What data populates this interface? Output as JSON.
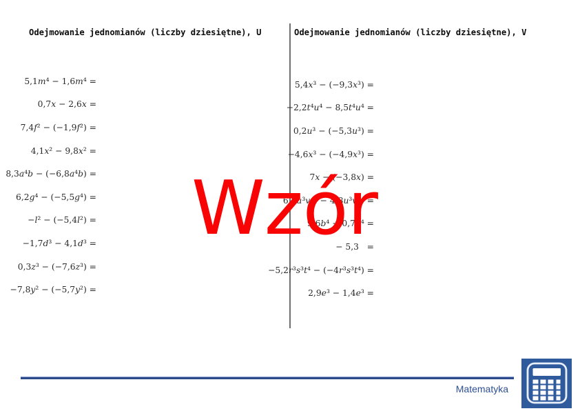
{
  "left_worksheet": {
    "title": "Odejmowanie jednomianów (liczby dziesiętne), U",
    "problems": [
      "5,1m⁴ − 1,6m⁴ =",
      "0,7x − 2,6x =",
      "7,4f² − (−1,9f²) =",
      "4,1x² − 9,8x² =",
      "8,3a⁴b − (−6,8a⁴b) =",
      "6,2g⁴ − (−5,5g⁴) =",
      "−l² − (−5,4l²) =",
      "−1,7d³ − 4,1d³ =",
      "0,3z³ − (−7,6z³) =",
      "−7,8y² − (−5,7y²) ="
    ]
  },
  "right_worksheet": {
    "title": "Odejmowanie jednomianów (liczby dziesiętne), V",
    "problems": [
      "5,4x³ − (−9,3x³) =",
      "−2,2t⁴u⁴ − 8,5t⁴u⁴ =",
      "0,2u³ − (−5,3u³) =",
      "−4,6x³ − (−4,9x³) =",
      "7x − (−3,8x) =",
      "6,6u³vw − 4,8u³vw =",
      "9,6b⁴ − 0,7b⁴ =",
      "− 5,3   =",
      "−5,2r³s³t⁴ − (−4r³s³t⁴) =",
      "2,9e³ − 1,4e³ ="
    ]
  },
  "watermark": {
    "text": "Wzór",
    "color": "#f80404"
  },
  "footer": {
    "brand": "Matematyka",
    "brand_color": "#2d4f93",
    "rule_color": "#2d4a8c",
    "logo_icon": "calculator-icon",
    "logo_color": "#2f5a9c"
  }
}
